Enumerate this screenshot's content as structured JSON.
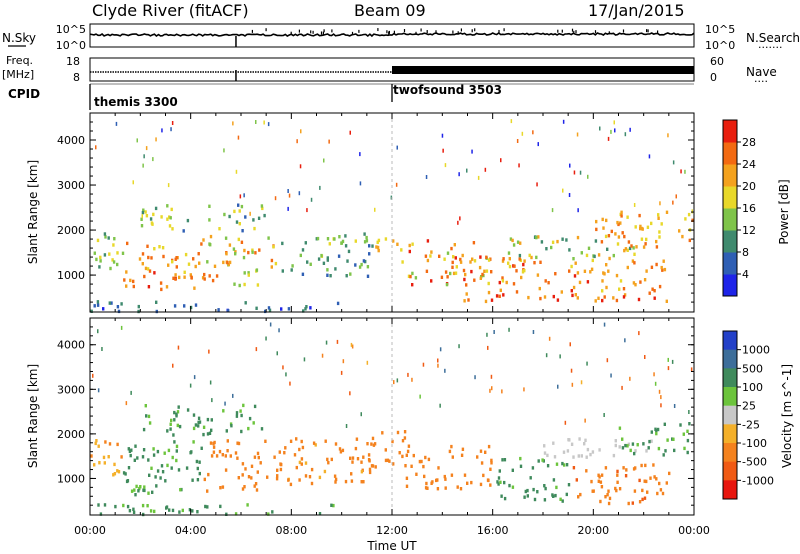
{
  "header": {
    "station": "Clyde River (fitACF)",
    "beam": "Beam 09",
    "date": "17/Jan/2015"
  },
  "nsky_panel": {
    "left_label": "N.Sky",
    "left_ticks": [
      "10^5",
      "10^0"
    ],
    "right_ticks": [
      "10^5",
      "10^0"
    ],
    "right_label": "N.Search",
    "right_legend_line": "......."
  },
  "freq_panel": {
    "left_label_1": "Freq.",
    "left_label_2": "[MHz]",
    "left_ticks": [
      "18",
      "8"
    ],
    "right_ticks": [
      "60",
      "0"
    ],
    "right_label": "Nave",
    "right_legend_line": "...."
  },
  "cpid_panel": {
    "label": "CPID",
    "modes": [
      {
        "name": "themis 3300",
        "start_hour": 0
      },
      {
        "name": "twofsound 3503",
        "start_hour": 12
      }
    ]
  },
  "x_axis": {
    "label": "Time UT",
    "range": [
      0,
      24
    ],
    "ticks": [
      "00:00",
      "04:00",
      "08:00",
      "12:00",
      "16:00",
      "20:00",
      "00:00"
    ]
  },
  "y_axis": {
    "label": "Slant Range [km]",
    "range": [
      180,
      4600
    ],
    "ticks": [
      "1000",
      "2000",
      "3000",
      "4000"
    ]
  },
  "power_colorbar": {
    "label": "Power [dB]",
    "ticks": [
      "4",
      "8",
      "12",
      "16",
      "20",
      "24",
      "28"
    ],
    "colors": [
      "#1e24e8",
      "#2f5fb4",
      "#3f8a6e",
      "#7fc44a",
      "#e8d82a",
      "#f4a21e",
      "#f36a12",
      "#e81e0e"
    ]
  },
  "velocity_colorbar": {
    "label": "Velocity [m s^-1]",
    "ticks": [
      "1000",
      "500",
      "100",
      "25",
      "-25",
      "-100",
      "-500",
      "-1000"
    ],
    "colors": [
      "#2340c8",
      "#3d6e9a",
      "#3f8a5c",
      "#6cc43c",
      "#c8c8c8",
      "#f4b02a",
      "#f4821e",
      "#f05a14",
      "#e8160e"
    ]
  },
  "chart_data": [
    {
      "type": "heatmap",
      "name": "power",
      "xlabel": "Time UT",
      "ylabel": "Slant Range [km]",
      "xlim": [
        0,
        24
      ],
      "ylim": [
        180,
        4600
      ],
      "zlabel": "Power [dB]",
      "zlim": [
        0,
        32
      ],
      "blobs": [
        {
          "t0": 0.0,
          "t1": 1.3,
          "r0": 1100,
          "r1": 2000,
          "v0": 10,
          "v1": 20
        },
        {
          "t0": 1.3,
          "t1": 4.3,
          "r0": 650,
          "r1": 1750,
          "v0": 18,
          "v1": 30
        },
        {
          "t0": 4.3,
          "t1": 7.3,
          "r0": 800,
          "r1": 1900,
          "v0": 14,
          "v1": 28
        },
        {
          "t0": 7.3,
          "t1": 11.3,
          "r0": 1000,
          "r1": 1950,
          "v0": 6,
          "v1": 18
        },
        {
          "t0": 11.3,
          "t1": 12.5,
          "r0": 1250,
          "r1": 1950,
          "v0": 14,
          "v1": 24
        },
        {
          "t0": 12.5,
          "t1": 16.0,
          "r0": 800,
          "r1": 1800,
          "v0": 14,
          "v1": 30
        },
        {
          "t0": 14.8,
          "t1": 23.0,
          "r0": 450,
          "r1": 1400,
          "v0": 18,
          "v1": 30
        },
        {
          "t0": 16.0,
          "t1": 22.0,
          "r0": 1400,
          "r1": 1900,
          "v0": 10,
          "v1": 22
        },
        {
          "t0": 20.0,
          "t1": 24.0,
          "r0": 1650,
          "r1": 2450,
          "v0": 16,
          "v1": 28
        },
        {
          "t0": 0.0,
          "t1": 10.0,
          "r0": 200,
          "r1": 450,
          "v0": 2,
          "v1": 12
        },
        {
          "t0": 2.0,
          "t1": 7.0,
          "r0": 2000,
          "r1": 2600,
          "v0": 6,
          "v1": 20
        }
      ]
    },
    {
      "type": "heatmap",
      "name": "velocity",
      "xlabel": "Time UT",
      "ylabel": "Slant Range [km]",
      "xlim": [
        0,
        24
      ],
      "ylim": [
        180,
        4600
      ],
      "zlabel": "Velocity [m s^-1]",
      "zlim": [
        -1000,
        1000
      ],
      "blobs": [
        {
          "t0": 0.0,
          "t1": 1.3,
          "r0": 1100,
          "r1": 2000,
          "v0": -120,
          "v1": -40
        },
        {
          "t0": 1.3,
          "t1": 4.5,
          "r0": 650,
          "r1": 1900,
          "v0": 40,
          "v1": 250
        },
        {
          "t0": 4.5,
          "t1": 7.5,
          "r0": 750,
          "r1": 1900,
          "v0": -300,
          "v1": -100
        },
        {
          "t0": 7.5,
          "t1": 11.5,
          "r0": 900,
          "r1": 1950,
          "v0": -350,
          "v1": -80
        },
        {
          "t0": 11.5,
          "t1": 12.5,
          "r0": 1200,
          "r1": 2100,
          "v0": -320,
          "v1": -120
        },
        {
          "t0": 12.5,
          "t1": 16.0,
          "r0": 800,
          "r1": 1800,
          "v0": -400,
          "v1": -150
        },
        {
          "t0": 16.0,
          "t1": 19.0,
          "r0": 500,
          "r1": 1500,
          "v0": 40,
          "v1": 250
        },
        {
          "t0": 19.0,
          "t1": 23.0,
          "r0": 450,
          "r1": 1350,
          "v0": -550,
          "v1": -150
        },
        {
          "t0": 18.0,
          "t1": 22.5,
          "r0": 1500,
          "r1": 1950,
          "v0": -20,
          "v1": 20
        },
        {
          "t0": 21.0,
          "t1": 24.0,
          "r0": 1550,
          "r1": 2300,
          "v0": 40,
          "v1": 180
        },
        {
          "t0": 2.0,
          "t1": 7.0,
          "r0": 2000,
          "r1": 2700,
          "v0": 60,
          "v1": 200
        },
        {
          "t0": 0.0,
          "t1": 10.0,
          "r0": 200,
          "r1": 450,
          "v0": 30,
          "v1": 250
        }
      ]
    }
  ]
}
